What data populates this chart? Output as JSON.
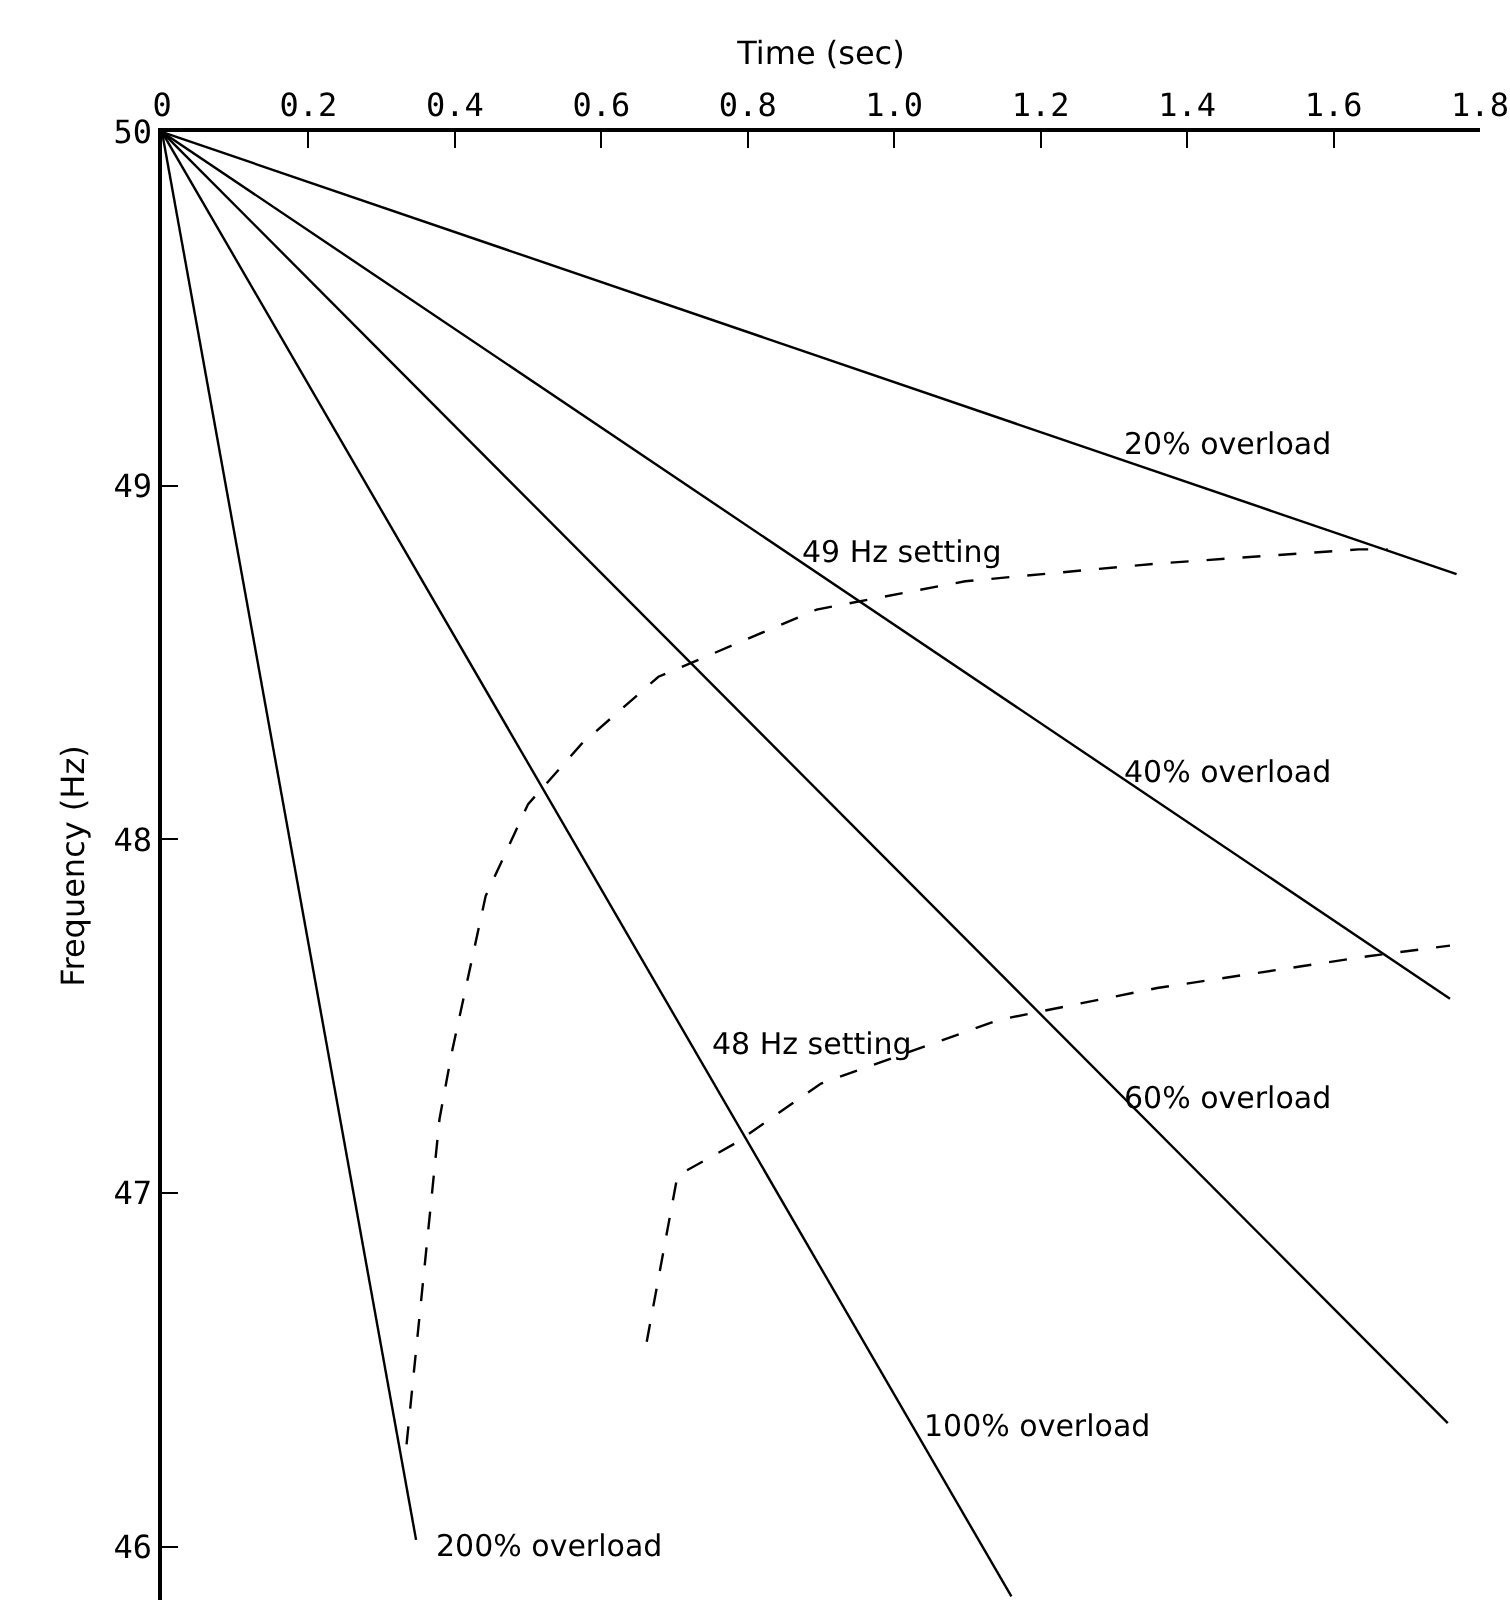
{
  "chart_data": {
    "type": "line",
    "xlabel": "Time (sec)",
    "ylabel": "Frequency (Hz)",
    "xlim": [
      0,
      1.8
    ],
    "ylim": [
      45.85,
      50
    ],
    "xticks": [
      0,
      0.2,
      0.4,
      0.6,
      0.8,
      {
        "value": 1.0,
        "label": "1.0"
      },
      1.2,
      1.4,
      1.6,
      1.8
    ],
    "yticks": [
      46,
      47,
      48,
      49,
      50
    ],
    "marker": "none",
    "series": [
      {
        "name": "20% overload",
        "color": "#000000",
        "line_style": "solid",
        "x": [
          0,
          1.768
        ],
        "values": [
          50,
          48.75
        ]
      },
      {
        "name": "40% overload",
        "color": "#000000",
        "line_style": "solid",
        "x": [
          0,
          1.759
        ],
        "values": [
          50,
          47.55
        ]
      },
      {
        "name": "60% overload",
        "color": "#000000",
        "line_style": "solid",
        "x": [
          0,
          1.756
        ],
        "values": [
          50,
          46.35
        ]
      },
      {
        "name": "100% overload",
        "color": "#000000",
        "line_style": "solid",
        "x": [
          0,
          1.16
        ],
        "values": [
          50,
          45.86
        ]
      },
      {
        "name": "200% overload",
        "color": "#000000",
        "line_style": "solid",
        "x": [
          0,
          0.347
        ],
        "values": [
          50,
          46.02
        ]
      },
      {
        "name": "49 Hz setting",
        "color": "#000000",
        "line_style": "dashed",
        "x": [
          0.334,
          0.379,
          0.396,
          0.442,
          0.5,
          0.573,
          0.678,
          0.894,
          1.097,
          1.359,
          1.634,
          1.674
        ],
        "values": [
          46.29,
          47.21,
          47.4,
          47.84,
          48.1,
          48.27,
          48.46,
          48.65,
          48.73,
          48.78,
          48.82,
          48.82
        ]
      },
      {
        "name": "48 Hz setting",
        "color": "#000000",
        "line_style": "dashed",
        "x": [
          0.662,
          0.704,
          0.782,
          0.9,
          1.143,
          1.359,
          1.647,
          1.759
        ],
        "values": [
          46.58,
          47.05,
          47.14,
          47.31,
          47.49,
          47.58,
          47.67,
          47.7
        ]
      }
    ]
  }
}
